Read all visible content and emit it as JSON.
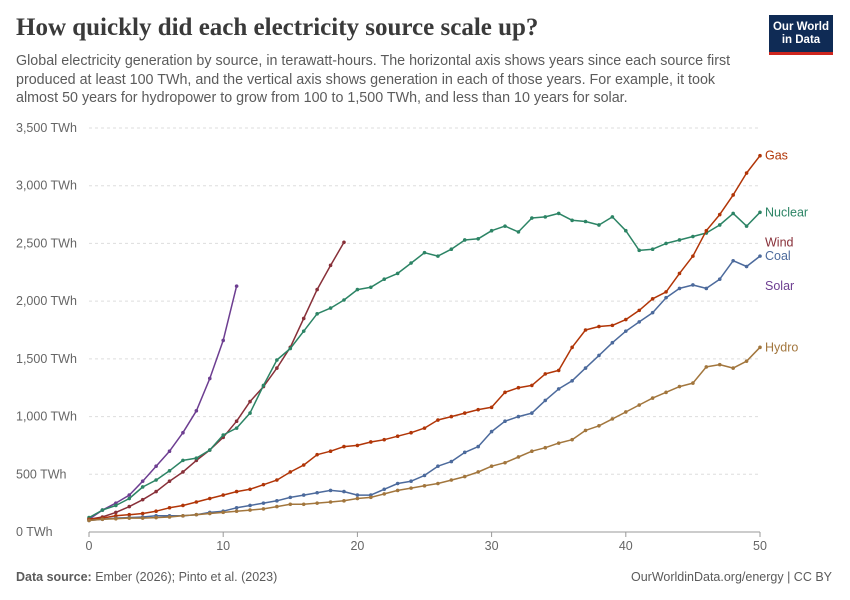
{
  "header": {
    "title": "How quickly did each electricity source scale up?",
    "subtitle": "Global electricity generation by source, in terawatt-hours. The horizontal axis shows years since each source first produced at least 100 TWh, and the vertical axis shows generation in each of those years. For example, it took almost 50 years for hydropower to grow from 100 to 1,500 TWh, and less than 10 years for solar."
  },
  "logo": {
    "line1": "Our World",
    "line2": "in Data"
  },
  "footer": {
    "source_label": "Data source:",
    "source_text": " Ember (2026); Pinto et al. (2023)",
    "right_text": "OurWorldinData.org/energy | CC BY"
  },
  "chart_data": {
    "type": "line",
    "xlim": [
      0,
      50
    ],
    "ylim": [
      0,
      3500
    ],
    "x_ticks": [
      0,
      10,
      20,
      30,
      40,
      50
    ],
    "x_tick_labels": [
      "0",
      "10",
      "20",
      "30",
      "40",
      "50"
    ],
    "y_ticks": [
      0,
      500,
      1000,
      1500,
      2000,
      2500,
      3000,
      3500
    ],
    "y_tick_labels": [
      "0 TWh",
      "500 TWh",
      "1,000 TWh",
      "1,500 TWh",
      "2,000 TWh",
      "2,500 TWh",
      "3,000 TWh",
      "3,500 TWh"
    ],
    "grid": "horizontal dashed",
    "legend": "inline labels at right end of lines",
    "series": [
      {
        "name": "Solar",
        "color": "#6d3e91",
        "x": [
          0,
          1,
          2,
          3,
          4,
          5,
          6,
          7,
          8,
          9,
          10,
          11
        ],
        "values": [
          110,
          190,
          250,
          320,
          440,
          570,
          700,
          860,
          1050,
          1330,
          1660,
          2130
        ]
      },
      {
        "name": "Wind",
        "color": "#883039",
        "x": [
          0,
          1,
          2,
          3,
          4,
          5,
          6,
          7,
          8,
          9,
          10,
          11,
          12,
          13,
          14,
          15,
          16,
          17,
          18,
          19
        ],
        "values": [
          110,
          130,
          170,
          220,
          280,
          350,
          440,
          520,
          620,
          710,
          820,
          960,
          1130,
          1260,
          1420,
          1600,
          1850,
          2100,
          2310,
          2510
        ]
      },
      {
        "name": "Nuclear",
        "color": "#2c8465",
        "x": [
          0,
          1,
          2,
          3,
          4,
          5,
          6,
          7,
          8,
          9,
          10,
          11,
          12,
          13,
          14,
          15,
          16,
          17,
          18,
          19,
          20,
          21,
          22,
          23,
          24,
          25,
          26,
          27,
          28,
          29,
          30,
          31,
          32,
          33,
          34,
          35,
          36,
          37,
          38,
          39,
          40,
          41,
          42,
          43,
          44,
          45,
          46,
          47,
          48,
          49,
          50
        ],
        "values": [
          125,
          190,
          230,
          290,
          390,
          450,
          530,
          620,
          640,
          710,
          840,
          900,
          1030,
          1270,
          1490,
          1590,
          1740,
          1890,
          1940,
          2010,
          2100,
          2120,
          2190,
          2240,
          2330,
          2420,
          2390,
          2450,
          2530,
          2540,
          2610,
          2650,
          2600,
          2720,
          2730,
          2760,
          2700,
          2690,
          2660,
          2730,
          2610,
          2440,
          2450,
          2500,
          2530,
          2560,
          2590,
          2660,
          2760,
          2650,
          2770
        ]
      },
      {
        "name": "Gas",
        "color": "#b13507",
        "x": [
          0,
          1,
          2,
          3,
          4,
          5,
          6,
          7,
          8,
          9,
          10,
          11,
          12,
          13,
          14,
          15,
          16,
          17,
          18,
          19,
          20,
          21,
          22,
          23,
          24,
          25,
          26,
          27,
          28,
          29,
          30,
          31,
          32,
          33,
          34,
          35,
          36,
          37,
          38,
          39,
          40,
          41,
          42,
          43,
          44,
          45,
          46,
          47,
          48,
          49,
          50
        ],
        "values": [
          110,
          120,
          140,
          150,
          160,
          180,
          210,
          230,
          260,
          290,
          320,
          350,
          370,
          410,
          450,
          520,
          580,
          670,
          700,
          740,
          750,
          780,
          800,
          830,
          860,
          900,
          970,
          1000,
          1030,
          1060,
          1080,
          1210,
          1250,
          1270,
          1370,
          1400,
          1600,
          1750,
          1780,
          1790,
          1840,
          1920,
          2020,
          2080,
          2240,
          2390,
          2610,
          2750,
          2920,
          3110,
          3260
        ]
      },
      {
        "name": "Coal",
        "color": "#4c6a9c",
        "x": [
          0,
          1,
          2,
          3,
          4,
          5,
          6,
          7,
          8,
          9,
          10,
          11,
          12,
          13,
          14,
          15,
          16,
          17,
          18,
          19,
          20,
          21,
          22,
          23,
          24,
          25,
          26,
          27,
          28,
          29,
          30,
          31,
          32,
          33,
          34,
          35,
          36,
          37,
          38,
          39,
          40,
          41,
          42,
          43,
          44,
          45,
          46,
          47,
          48,
          49,
          50
        ],
        "values": [
          100,
          110,
          120,
          125,
          130,
          140,
          140,
          140,
          150,
          170,
          180,
          210,
          230,
          250,
          270,
          300,
          320,
          340,
          360,
          350,
          320,
          320,
          370,
          420,
          440,
          490,
          570,
          610,
          690,
          740,
          870,
          960,
          1000,
          1030,
          1140,
          1240,
          1310,
          1420,
          1530,
          1640,
          1740,
          1820,
          1900,
          2030,
          2110,
          2140,
          2110,
          2190,
          2350,
          2300,
          2390
        ]
      },
      {
        "name": "Hydro",
        "color": "#a2763d",
        "x": [
          0,
          1,
          2,
          3,
          4,
          5,
          6,
          7,
          8,
          9,
          10,
          11,
          12,
          13,
          14,
          15,
          16,
          17,
          18,
          19,
          20,
          21,
          22,
          23,
          24,
          25,
          26,
          27,
          28,
          29,
          30,
          31,
          32,
          33,
          34,
          35,
          36,
          37,
          38,
          39,
          40,
          41,
          42,
          43,
          44,
          45,
          46,
          47,
          48,
          49,
          50
        ],
        "values": [
          100,
          110,
          115,
          120,
          120,
          125,
          130,
          140,
          150,
          160,
          170,
          180,
          190,
          200,
          220,
          240,
          240,
          250,
          260,
          270,
          290,
          300,
          330,
          360,
          380,
          400,
          420,
          450,
          480,
          520,
          570,
          600,
          650,
          700,
          730,
          770,
          800,
          880,
          920,
          980,
          1040,
          1100,
          1160,
          1210,
          1260,
          1290,
          1430,
          1450,
          1420,
          1480,
          1600
        ]
      }
    ]
  }
}
